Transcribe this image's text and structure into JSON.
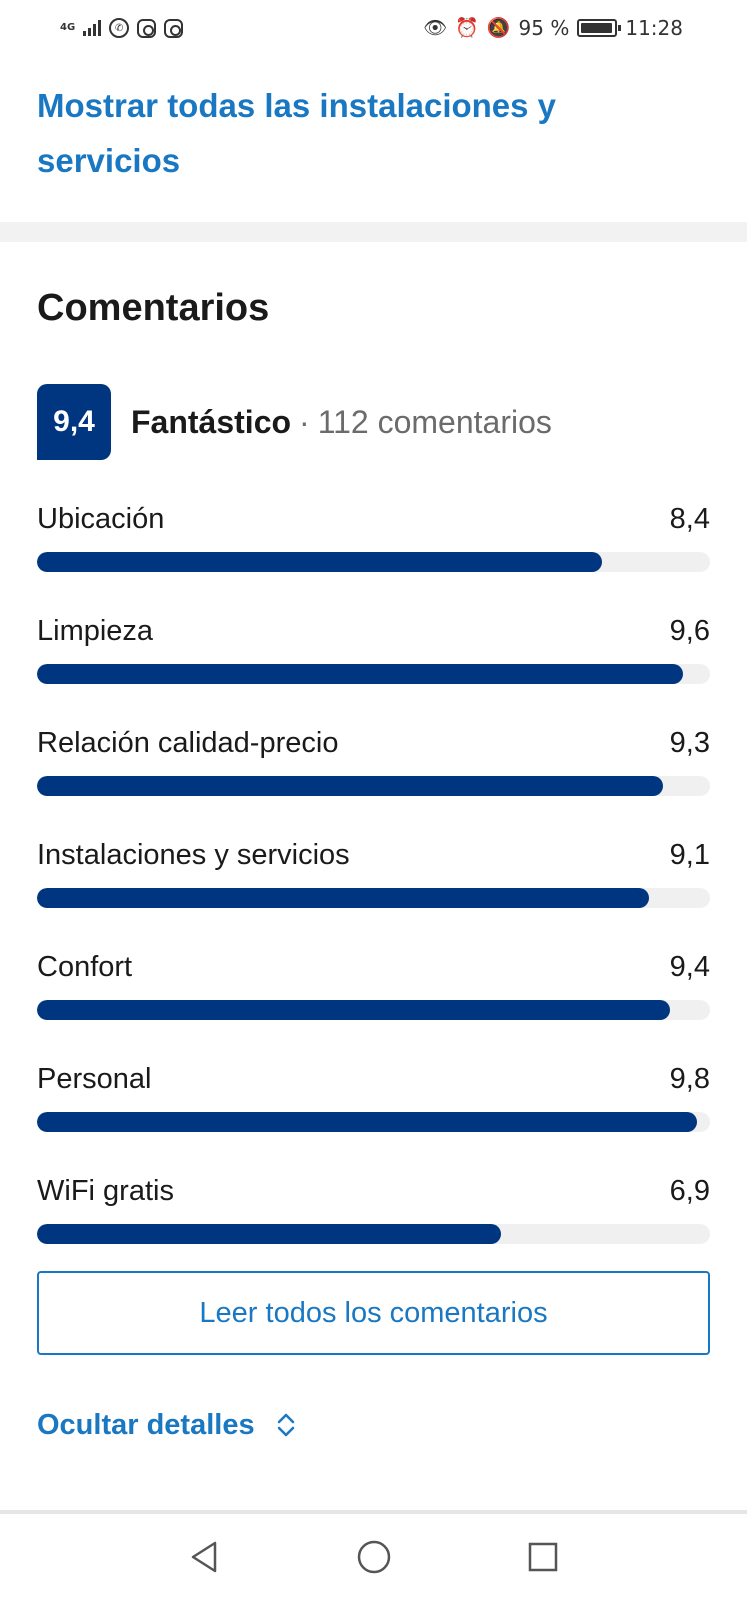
{
  "status_bar": {
    "network": "4G",
    "battery_percent": "95 %",
    "battery_level": 0.95,
    "time": "11:28",
    "left_icons": [
      "signal-icon",
      "whatsapp-icon",
      "instagram-icon",
      "instagram-icon"
    ],
    "right_icons": [
      "eye-icon",
      "alarm-icon",
      "mute-icon",
      "battery-icon"
    ]
  },
  "facilities_link": "Mostrar todas las instalaciones y servicios",
  "reviews": {
    "title": "Comentarios",
    "score": "9,4",
    "rating_word": "Fantástico",
    "separator": "·",
    "count_text": "112 comentarios",
    "categories": [
      {
        "label": "Ubicación",
        "score": "8,4",
        "value": 8.4
      },
      {
        "label": "Limpieza",
        "score": "9,6",
        "value": 9.6
      },
      {
        "label": "Relación calidad-precio",
        "score": "9,3",
        "value": 9.3
      },
      {
        "label": "Instalaciones y servicios",
        "score": "9,1",
        "value": 9.1
      },
      {
        "label": "Confort",
        "score": "9,4",
        "value": 9.4
      },
      {
        "label": "Personal",
        "score": "9,8",
        "value": 9.8
      },
      {
        "label": "WiFi gratis",
        "score": "6,9",
        "value": 6.9
      }
    ],
    "read_all_label": "Leer todos los comentarios",
    "hide_details_label": "Ocultar detalles"
  },
  "nav_bar": {
    "icons": [
      "back-icon",
      "home-icon",
      "recents-icon"
    ]
  },
  "colors": {
    "brand_dark_blue": "#003580",
    "link_blue": "#1a78c2",
    "track_gray": "#f0f0f0"
  }
}
